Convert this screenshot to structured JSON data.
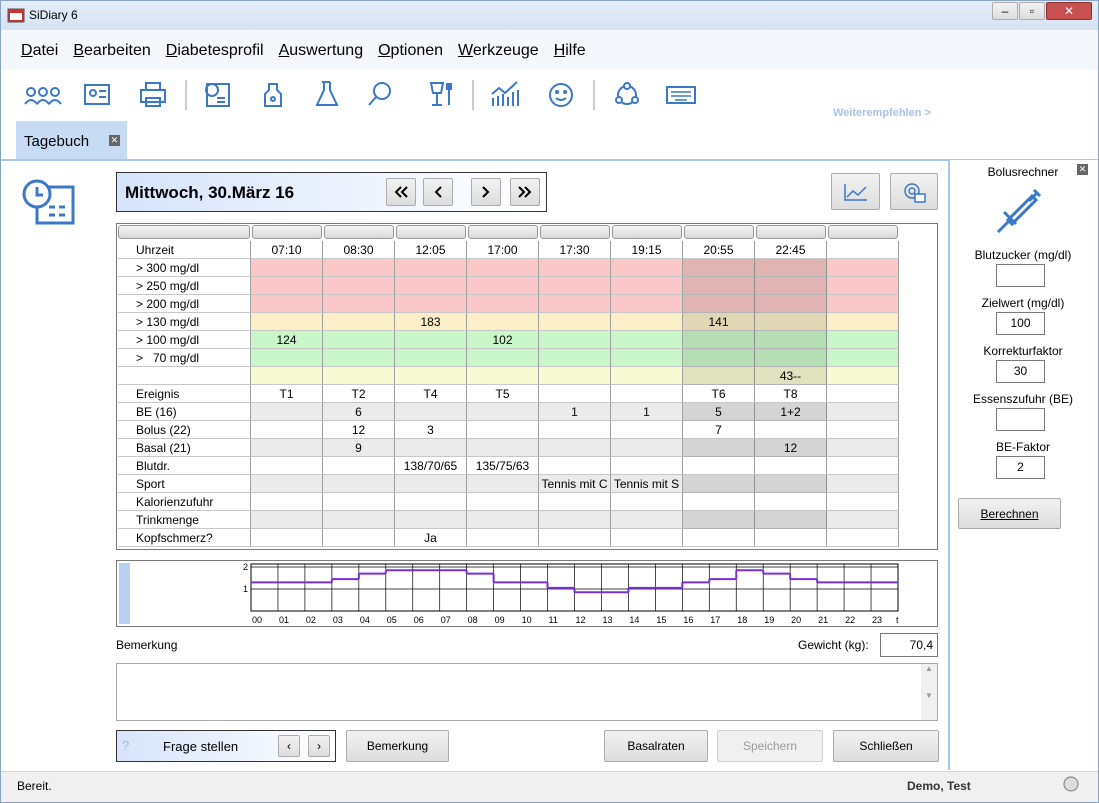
{
  "window": {
    "title": "SiDiary 6"
  },
  "menu": [
    "Datei",
    "Bearbeiten",
    "Diabetesprofil",
    "Auswertung",
    "Optionen",
    "Werkzeuge",
    "Hilfe"
  ],
  "toolbar": {
    "link": "Weiterempfehlen >"
  },
  "tab": {
    "title": "Tagebuch"
  },
  "diary": {
    "date": "Mittwoch, 30.März 16",
    "rows": [
      {
        "label": "Uhrzeit",
        "color": "#ffffff",
        "cells": [
          "07:10",
          "08:30",
          "12:05",
          "17:00",
          "17:30",
          "19:15",
          "20:55",
          "22:45",
          null
        ]
      },
      {
        "label": "> 300 mg/dl",
        "color": "#fac8c8",
        "cells": [
          null,
          null,
          null,
          null,
          null,
          null,
          null,
          null,
          null
        ]
      },
      {
        "label": "> 250 mg/dl",
        "color": "#fac8c8",
        "cells": [
          null,
          null,
          null,
          null,
          null,
          null,
          null,
          null,
          null
        ]
      },
      {
        "label": "> 200 mg/dl",
        "color": "#fac8c8",
        "cells": [
          null,
          null,
          null,
          null,
          null,
          null,
          null,
          null,
          null
        ]
      },
      {
        "label": "> 130 mg/dl",
        "color": "#fbefc8",
        "cells": [
          null,
          null,
          183,
          null,
          null,
          null,
          141,
          null,
          null
        ]
      },
      {
        "label": "> 100 mg/dl",
        "color": "#c9f7c9",
        "cells": [
          124,
          null,
          null,
          102,
          null,
          null,
          null,
          null,
          null
        ]
      },
      {
        "label": ">   70 mg/dl",
        "color": "#c9f7c9",
        "cells": [
          null,
          null,
          null,
          null,
          null,
          null,
          null,
          null,
          null
        ]
      },
      {
        "label": null,
        "color": "#fafad2",
        "cells": [
          null,
          null,
          null,
          null,
          null,
          null,
          null,
          "43--",
          null
        ]
      },
      {
        "label": "Ereignis",
        "color": "#ffffff",
        "cells": [
          "T1",
          "T2",
          "T4",
          "T5",
          null,
          null,
          "T6",
          "T8",
          null
        ]
      },
      {
        "label": "BE (16)",
        "color": "#ebebeb",
        "cells": [
          null,
          6,
          null,
          null,
          1,
          1,
          5,
          "1+2",
          null
        ]
      },
      {
        "label": "Bolus (22)",
        "color": "#ffffff",
        "cells": [
          null,
          12,
          3,
          null,
          null,
          null,
          7,
          null,
          null
        ]
      },
      {
        "label": "Basal (21)",
        "color": "#ebebeb",
        "cells": [
          null,
          9,
          null,
          null,
          null,
          null,
          null,
          12,
          null
        ]
      },
      {
        "label": "Blutdr.",
        "color": "#ffffff",
        "cells": [
          null,
          null,
          "138/70/65",
          "135/75/63",
          null,
          null,
          null,
          null,
          null
        ]
      },
      {
        "label": "Sport",
        "color": "#ebebeb",
        "cells": [
          null,
          null,
          null,
          null,
          "Tennis mit C",
          "Tennis mit S",
          null,
          null,
          null
        ]
      },
      {
        "label": "Kalorienzufuhr",
        "color": "#ffffff",
        "cells": [
          null,
          null,
          null,
          null,
          null,
          null,
          null,
          null,
          null
        ]
      },
      {
        "label": "Trinkmenge",
        "color": "#ebebeb",
        "cells": [
          null,
          null,
          null,
          null,
          null,
          null,
          null,
          null,
          null
        ]
      },
      {
        "label": "Kopfschmerz?",
        "color": "#ffffff",
        "cells": [
          null,
          null,
          "Ja",
          null,
          null,
          null,
          null,
          null,
          null
        ]
      }
    ]
  },
  "basal_chart": {
    "type": "step",
    "categories": [
      "00",
      "01",
      "02",
      "03",
      "04",
      "05",
      "06",
      "07",
      "08",
      "09",
      "10",
      "11",
      "12",
      "13",
      "14",
      "15",
      "16",
      "17",
      "18",
      "19",
      "20",
      "21",
      "22",
      "23"
    ],
    "x_label": "t",
    "values": [
      1.3,
      1.3,
      1.3,
      1.45,
      1.7,
      1.85,
      1.85,
      1.85,
      1.7,
      1.3,
      1.3,
      1.05,
      0.85,
      0.85,
      1.05,
      1.05,
      1.3,
      1.45,
      1.85,
      1.7,
      1.45,
      1.3,
      1.3,
      1.3
    ],
    "ylim": [
      0,
      2
    ],
    "yticks": [
      1,
      2
    ],
    "color": "#7b2fd8",
    "grid": true
  },
  "remarks": {
    "label": "Bemerkung",
    "weight_label": "Gewicht (kg):",
    "weight": "70,4"
  },
  "buttons": {
    "ask": "Frage stellen",
    "remark": "Bemerkung",
    "basal": "Basalraten",
    "save": "Speichern",
    "close": "Schließen"
  },
  "bolus": {
    "title": "Bolusrechner",
    "fields": [
      {
        "label": "Blutzucker (mg/dl)"
      },
      {
        "label": "Zielwert (mg/dl)",
        "value": 100
      },
      {
        "label": "Korrekturfaktor",
        "value": 30
      },
      {
        "label": "Essenszufuhr (BE)"
      },
      {
        "label": "BE-Faktor",
        "value": 2
      }
    ],
    "button": "Berechnen"
  },
  "status": {
    "text": "Bereit.",
    "user": "Demo, Test"
  }
}
